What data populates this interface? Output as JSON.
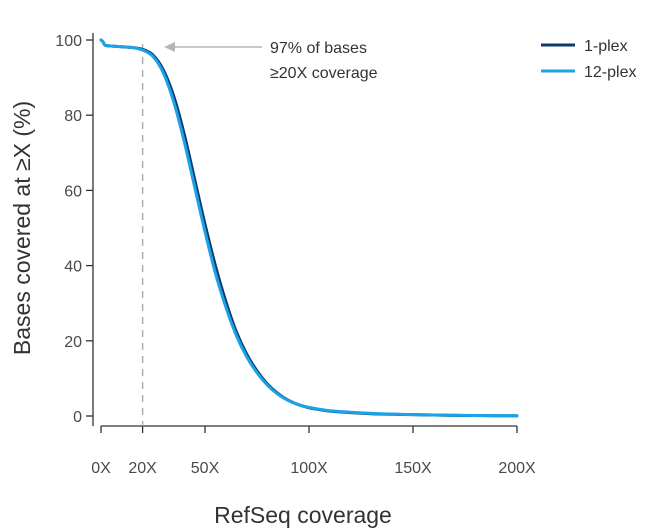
{
  "chart_data": {
    "type": "line",
    "title": "",
    "xlabel": "RefSeq coverage",
    "ylabel": "Bases covered at ≥X (%)",
    "xlim": [
      0,
      200
    ],
    "ylim": [
      0,
      100
    ],
    "x_ticks": [
      {
        "value": 0,
        "label": "0X"
      },
      {
        "value": 20,
        "label": "20X"
      },
      {
        "value": 50,
        "label": "50X"
      },
      {
        "value": 100,
        "label": "100X"
      },
      {
        "value": 150,
        "label": "150X"
      },
      {
        "value": 200,
        "label": "200X"
      }
    ],
    "y_ticks": [
      0,
      20,
      40,
      60,
      80,
      100
    ],
    "grid": false,
    "legend_position": "top-right",
    "reference_line": {
      "x": 20,
      "style": "dashed"
    },
    "annotation": {
      "lines": [
        "97% of bases",
        "≥20X coverage"
      ],
      "points_to": {
        "x": 20,
        "y": 97
      }
    },
    "series": [
      {
        "name": "1-plex",
        "color": "#0b3a6b",
        "x": [
          0,
          1,
          2,
          5,
          10,
          15,
          20,
          25,
          30,
          35,
          40,
          45,
          50,
          55,
          60,
          65,
          70,
          75,
          80,
          85,
          90,
          95,
          100,
          105,
          110,
          120,
          130,
          140,
          150,
          160,
          170,
          180,
          190,
          200
        ],
        "y": [
          100,
          99.5,
          98.6,
          98.4,
          98.2,
          98.0,
          97.5,
          96.0,
          92.0,
          85.0,
          75.0,
          63.0,
          51.0,
          40.0,
          30.5,
          22.5,
          16.5,
          12.0,
          8.5,
          6.0,
          4.2,
          3.0,
          2.2,
          1.7,
          1.3,
          0.9,
          0.6,
          0.45,
          0.35,
          0.25,
          0.18,
          0.12,
          0.08,
          0.05
        ]
      },
      {
        "name": "12-plex",
        "color": "#1aa3e8",
        "x": [
          0,
          1,
          2,
          5,
          10,
          15,
          20,
          25,
          30,
          35,
          40,
          45,
          50,
          55,
          60,
          65,
          70,
          75,
          80,
          85,
          90,
          95,
          100,
          105,
          110,
          120,
          130,
          140,
          150,
          160,
          170,
          180,
          190,
          200
        ],
        "y": [
          100,
          99.5,
          98.6,
          98.4,
          98.2,
          98.0,
          97.3,
          95.6,
          91.2,
          83.5,
          73.0,
          61.0,
          49.0,
          38.0,
          29.0,
          21.5,
          15.8,
          11.5,
          8.2,
          5.8,
          4.1,
          3.0,
          2.3,
          1.8,
          1.4,
          1.0,
          0.7,
          0.5,
          0.38,
          0.28,
          0.2,
          0.13,
          0.09,
          0.06
        ]
      }
    ]
  }
}
